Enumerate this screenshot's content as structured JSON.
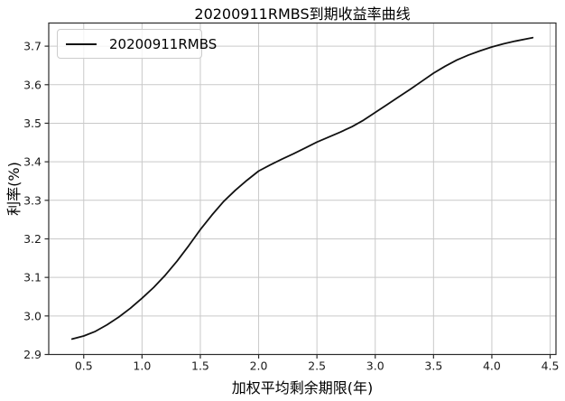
{
  "chart_data": {
    "type": "line",
    "title": "20200911RMBS到期收益率曲线",
    "xlabel": "加权平均剩余期限(年)",
    "ylabel": "利率(%)",
    "grid": true,
    "legend": {
      "position": "upper-left",
      "entries": [
        "20200911RMBS"
      ]
    },
    "xlim": [
      0.2,
      4.55
    ],
    "ylim": [
      2.9,
      3.76
    ],
    "xticks": {
      "values": [
        0.5,
        1.0,
        1.5,
        2.0,
        2.5,
        3.0,
        3.5,
        4.0,
        4.5
      ],
      "labels": [
        "0.5",
        "1.0",
        "1.5",
        "2.0",
        "2.5",
        "3.0",
        "3.5",
        "4.0",
        "4.5"
      ]
    },
    "yticks": {
      "values": [
        2.9,
        3.0,
        3.1,
        3.2,
        3.3,
        3.4,
        3.5,
        3.6,
        3.7
      ],
      "labels": [
        "2.9",
        "3.0",
        "3.1",
        "3.2",
        "3.3",
        "3.4",
        "3.5",
        "3.6",
        "3.7"
      ]
    },
    "series": [
      {
        "name": "20200911RMBS",
        "color": "#111111",
        "x": [
          0.4,
          0.5,
          0.6,
          0.7,
          0.8,
          0.9,
          1.0,
          1.1,
          1.2,
          1.3,
          1.4,
          1.5,
          1.6,
          1.7,
          1.8,
          1.9,
          2.0,
          2.1,
          2.2,
          2.3,
          2.4,
          2.5,
          2.6,
          2.7,
          2.8,
          2.9,
          3.0,
          3.1,
          3.2,
          3.3,
          3.4,
          3.5,
          3.6,
          3.7,
          3.8,
          3.9,
          4.0,
          4.1,
          4.2,
          4.3,
          4.35
        ],
        "y": [
          2.94,
          2.948,
          2.96,
          2.977,
          2.997,
          3.02,
          3.046,
          3.074,
          3.106,
          3.142,
          3.182,
          3.224,
          3.262,
          3.297,
          3.326,
          3.352,
          3.376,
          3.392,
          3.407,
          3.421,
          3.436,
          3.451,
          3.464,
          3.477,
          3.491,
          3.508,
          3.528,
          3.548,
          3.568,
          3.588,
          3.609,
          3.63,
          3.648,
          3.664,
          3.677,
          3.688,
          3.698,
          3.706,
          3.713,
          3.719,
          3.722
        ]
      }
    ],
    "colors": {
      "line": "#111111",
      "grid": "#c9c9c9",
      "spine": "#2b2b2b",
      "tick_text": "#1a1a1a"
    }
  }
}
